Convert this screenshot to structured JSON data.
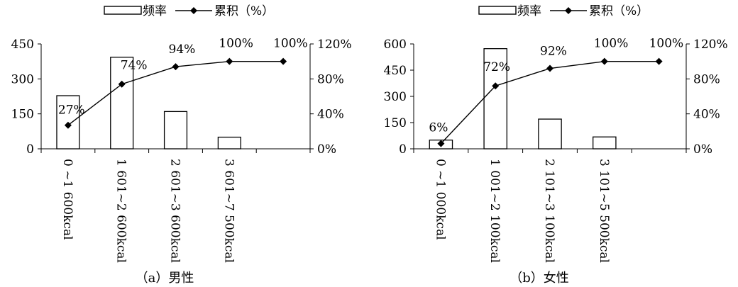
{
  "chart_data": [
    {
      "type": "bar",
      "caption": "（a）男性",
      "legend": {
        "bar_label": "频率",
        "line_label": "累积（%）",
        "placement": "top"
      },
      "categories": [
        "0 ~1 600kcal",
        "1 601~2 600kcal",
        "2 601~3 600kcal",
        "3 601~7 500kcal",
        ""
      ],
      "series": [
        {
          "name": "频率",
          "type": "bar",
          "axis": "left",
          "values": [
            228,
            393,
            160,
            50,
            null
          ]
        },
        {
          "name": "累积（%）",
          "type": "line",
          "axis": "right",
          "values": [
            27,
            74,
            94,
            100,
            100
          ],
          "labels": [
            "27%",
            "74%",
            "94%",
            "100%",
            "100%"
          ]
        }
      ],
      "y_left": {
        "min": 0,
        "max": 450,
        "ticks": [
          "0",
          "150",
          "300",
          "450"
        ],
        "tick_values": [
          0,
          150,
          300,
          450
        ]
      },
      "y_right": {
        "min": 0,
        "max": 120,
        "ticks": [
          "0%",
          "40%",
          "80%",
          "120%"
        ],
        "tick_values": [
          0,
          40,
          80,
          120
        ]
      },
      "grid": false
    },
    {
      "type": "bar",
      "caption": "（b）女性",
      "legend": {
        "bar_label": "频率",
        "line_label": "累积（%）",
        "placement": "top"
      },
      "categories": [
        "0 ~1 000kcal",
        "1 001~2 100kcal",
        "2 101~3 100kcal",
        "3 101~5 500kcal",
        ""
      ],
      "series": [
        {
          "name": "频率",
          "type": "bar",
          "axis": "left",
          "values": [
            50,
            573,
            170,
            68,
            null
          ]
        },
        {
          "name": "累积（%）",
          "type": "line",
          "axis": "right",
          "values": [
            6,
            72,
            92,
            100,
            100
          ],
          "labels": [
            "6%",
            "72%",
            "92%",
            "100%",
            "100%"
          ]
        }
      ],
      "y_left": {
        "min": 0,
        "max": 600,
        "ticks": [
          "0",
          "150",
          "300",
          "450",
          "600"
        ],
        "tick_values": [
          0,
          150,
          300,
          450,
          600
        ]
      },
      "y_right": {
        "min": 0,
        "max": 120,
        "ticks": [
          "0%",
          "40%",
          "80%",
          "120%"
        ],
        "tick_values": [
          0,
          40,
          80,
          120
        ]
      },
      "grid": false
    }
  ]
}
